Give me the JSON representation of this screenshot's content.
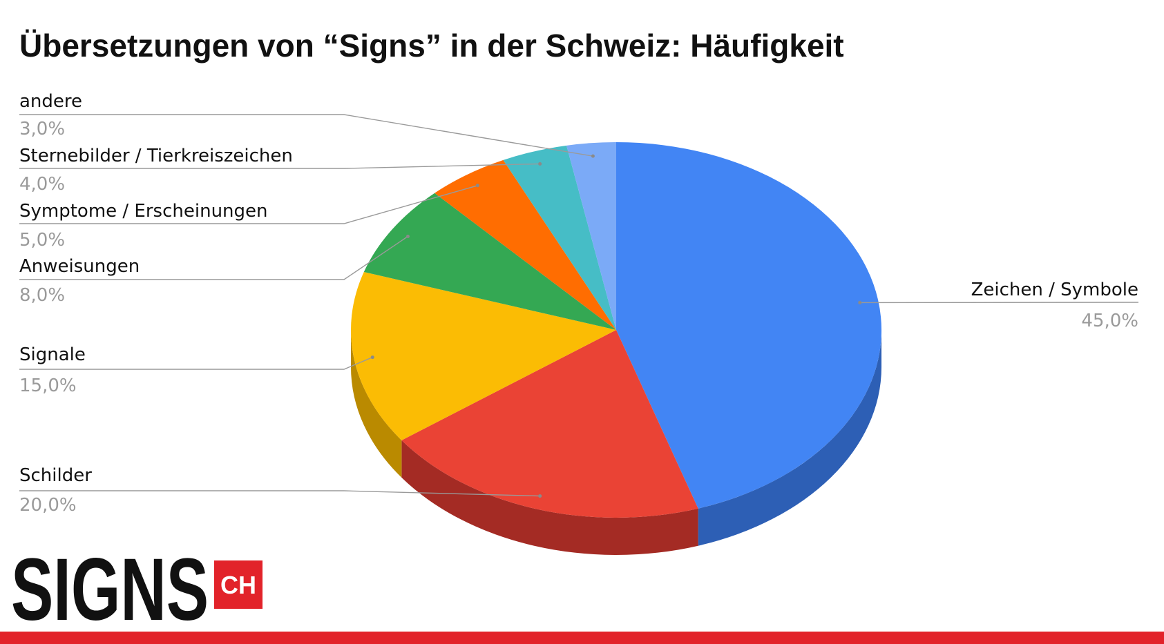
{
  "chart_data": {
    "type": "pie",
    "title": "Übersetzungen von “Signs” in der Schweiz: Häufigkeit",
    "three_d": true,
    "legend": "none",
    "slices": [
      {
        "name": "Zeichen / Symbole",
        "value": 45.0,
        "label": "45,0%",
        "color": "#4285F4",
        "side_color": "#2D5FB5"
      },
      {
        "name": "Schilder",
        "value": 20.0,
        "label": "20,0%",
        "color": "#EA4335",
        "side_color": "#A42B24"
      },
      {
        "name": "Signale",
        "value": 15.0,
        "label": "15,0%",
        "color": "#FBBC04",
        "side_color": "#BA8A00"
      },
      {
        "name": "Anweisungen",
        "value": 8.0,
        "label": "8,0%",
        "color": "#34A853",
        "side_color": "#24763A"
      },
      {
        "name": "Symptome / Erscheinungen",
        "value": 5.0,
        "label": "5,0%",
        "color": "#FF6D01",
        "side_color": "#B84D00"
      },
      {
        "name": "Sternebilder / Tierkreiszeichen",
        "value": 4.0,
        "label": "4,0%",
        "color": "#46BDC6",
        "side_color": "#31868C"
      },
      {
        "name": "andere",
        "value": 3.0,
        "label": "3,0%",
        "color": "#7BAAF7",
        "side_color": "#5579B0"
      }
    ]
  },
  "logo": {
    "main_text": "SIGNS",
    "badge_text": "CH",
    "main_color": "#111111",
    "badge_color": "#E2232A"
  },
  "footer": {
    "bar_color": "#E2232A"
  }
}
